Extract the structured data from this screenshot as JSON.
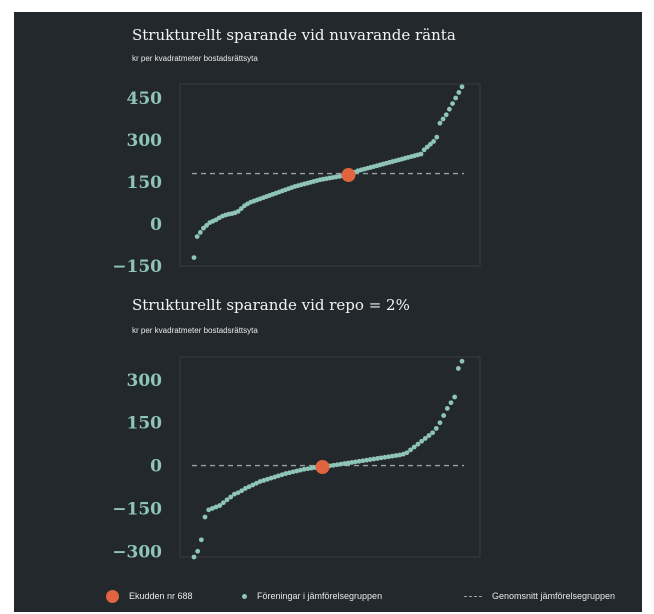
{
  "chart_data": [
    {
      "type": "scatter",
      "title": "Strukturellt sparande vid nuvarande ränta",
      "subtitle": "kr per kvadratmeter bostadsrättsyta",
      "ylim": [
        -150,
        500
      ],
      "yticks": [
        -150,
        0,
        150,
        300,
        450
      ],
      "ytick_labels": [
        "−150",
        "0",
        "150",
        "300",
        "450"
      ],
      "average_line": 180,
      "highlight": {
        "rank": 50,
        "value": 175
      },
      "series": [
        {
          "name": "Föreningar i jämförelsegruppen",
          "values": [
            -120,
            -45,
            -30,
            -15,
            -5,
            5,
            10,
            15,
            22,
            28,
            32,
            35,
            37,
            40,
            45,
            55,
            65,
            72,
            78,
            82,
            86,
            90,
            94,
            98,
            102,
            106,
            110,
            114,
            118,
            122,
            126,
            130,
            134,
            137,
            140,
            143,
            146,
            149,
            152,
            155,
            158,
            160,
            162,
            164,
            166,
            168,
            170,
            172,
            174,
            175,
            180,
            185,
            190,
            193,
            196,
            199,
            202,
            205,
            208,
            211,
            214,
            217,
            220,
            223,
            226,
            229,
            232,
            235,
            238,
            241,
            244,
            247,
            250,
            265,
            275,
            285,
            295,
            310,
            360,
            375,
            390,
            410,
            430,
            450,
            470,
            490
          ]
        }
      ]
    },
    {
      "type": "scatter",
      "title": "Strukturellt sparande vid repo = 2%",
      "subtitle": "kr per kvadratmeter bostadsrättsyta",
      "ylim": [
        -320,
        380
      ],
      "yticks": [
        -300,
        -150,
        0,
        150,
        300
      ],
      "ytick_labels": [
        "−300",
        "−150",
        "0",
        "150",
        "300"
      ],
      "average_line": 0,
      "highlight": {
        "rank": 36,
        "value": -5
      },
      "series": [
        {
          "name": "Föreningar i jämförelsegruppen",
          "values": [
            -320,
            -300,
            -260,
            -180,
            -155,
            -150,
            -145,
            -140,
            -130,
            -120,
            -110,
            -100,
            -95,
            -88,
            -80,
            -74,
            -68,
            -62,
            -56,
            -52,
            -48,
            -44,
            -40,
            -36,
            -32,
            -28,
            -25,
            -22,
            -19,
            -16,
            -13,
            -11,
            -9,
            -7,
            -5,
            -5,
            -3,
            -1,
            1,
            3,
            5,
            7,
            9,
            11,
            13,
            15,
            17,
            19,
            21,
            23,
            25,
            27,
            29,
            31,
            33,
            35,
            37,
            40,
            45,
            55,
            65,
            75,
            85,
            95,
            105,
            115,
            130,
            150,
            175,
            200,
            220,
            240,
            340,
            365
          ]
        }
      ]
    }
  ],
  "legend": {
    "highlight_label": "Ekudden nr 688",
    "group_label": "Föreningar i jämförelsegruppen",
    "average_label": "Genomsnitt jämförelsegruppen"
  },
  "colors": {
    "background": "#23282c",
    "highlight": "#e0643e",
    "points": "#8fc5b8",
    "average_line": "#9aa0a6",
    "axis_text": "#8fc5b8"
  }
}
